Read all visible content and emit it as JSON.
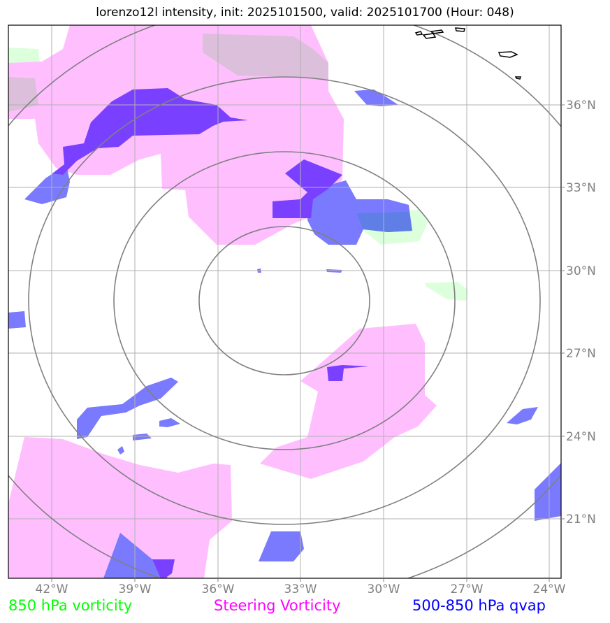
{
  "title": "lorenzo12l intensity, init: 2025101500, valid: 2025101700 (Hour: 048)",
  "x_ticks": [
    "42°W",
    "39°W",
    "36°W",
    "33°W",
    "30°W",
    "27°W",
    "24°W"
  ],
  "y_ticks": [
    "36°N",
    "33°N",
    "30°N",
    "27°N",
    "24°N",
    "21°N"
  ],
  "legend": {
    "vort850": {
      "label": "850 hPa vorticity",
      "color": "#00ff00"
    },
    "steering": {
      "label": "Steering Vorticity",
      "color": "#ff00ff"
    },
    "qvap": {
      "label": "500-850 hPa qvap",
      "color": "#0000ff"
    }
  },
  "colors": {
    "vort850_fill": "#dcffdc",
    "steering_fill": "#ffbfff",
    "qvap_fill": "#7a7aff",
    "overlap_fill": "#7a40ff",
    "grid": "#b0b0b0",
    "rings": "#808080"
  }
}
